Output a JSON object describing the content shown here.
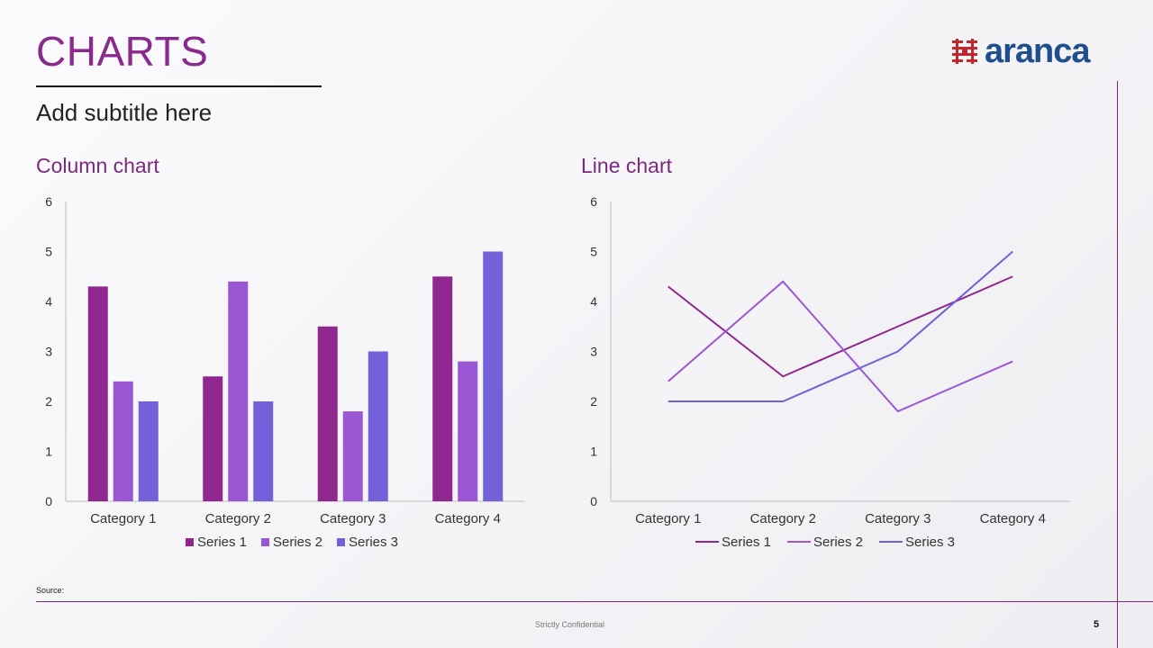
{
  "slide": {
    "title": "CHARTS",
    "subtitle": "Add subtitle here",
    "logo_text": "aranca",
    "source_label": "Source:",
    "footer_text": "Strictly Confidential",
    "page_number": "5"
  },
  "colors": {
    "title": "#8a2a8f",
    "accent_rule": "#7b2a7f",
    "logo_blue": "#1f4e8c",
    "logo_red": "#c0282e",
    "series": [
      "#90278f",
      "#9a57d3",
      "#7460d8"
    ]
  },
  "chart_data": [
    {
      "type": "bar",
      "title": "Column chart",
      "categories": [
        "Category 1",
        "Category 2",
        "Category 3",
        "Category 4"
      ],
      "series": [
        {
          "name": "Series 1",
          "values": [
            4.3,
            2.5,
            3.5,
            4.5
          ]
        },
        {
          "name": "Series 2",
          "values": [
            2.4,
            4.4,
            1.8,
            2.8
          ]
        },
        {
          "name": "Series 3",
          "values": [
            2,
            2,
            3,
            5
          ]
        }
      ],
      "yticks": [
        "0",
        "1",
        "2",
        "3",
        "4",
        "5",
        "6"
      ],
      "ylim": [
        0,
        6
      ],
      "grid": false,
      "legend": "bottom"
    },
    {
      "type": "line",
      "title": "Line chart",
      "categories": [
        "Category 1",
        "Category 2",
        "Category 3",
        "Category 4"
      ],
      "series": [
        {
          "name": "Series 1",
          "values": [
            4.3,
            2.5,
            3.5,
            4.5
          ]
        },
        {
          "name": "Series 2",
          "values": [
            2.4,
            4.4,
            1.8,
            2.8
          ]
        },
        {
          "name": "Series 3",
          "values": [
            2,
            2,
            3,
            5
          ]
        }
      ],
      "yticks": [
        "0",
        "1",
        "2",
        "3",
        "4",
        "5",
        "6"
      ],
      "ylim": [
        0,
        6
      ],
      "grid": false,
      "legend": "bottom"
    }
  ]
}
